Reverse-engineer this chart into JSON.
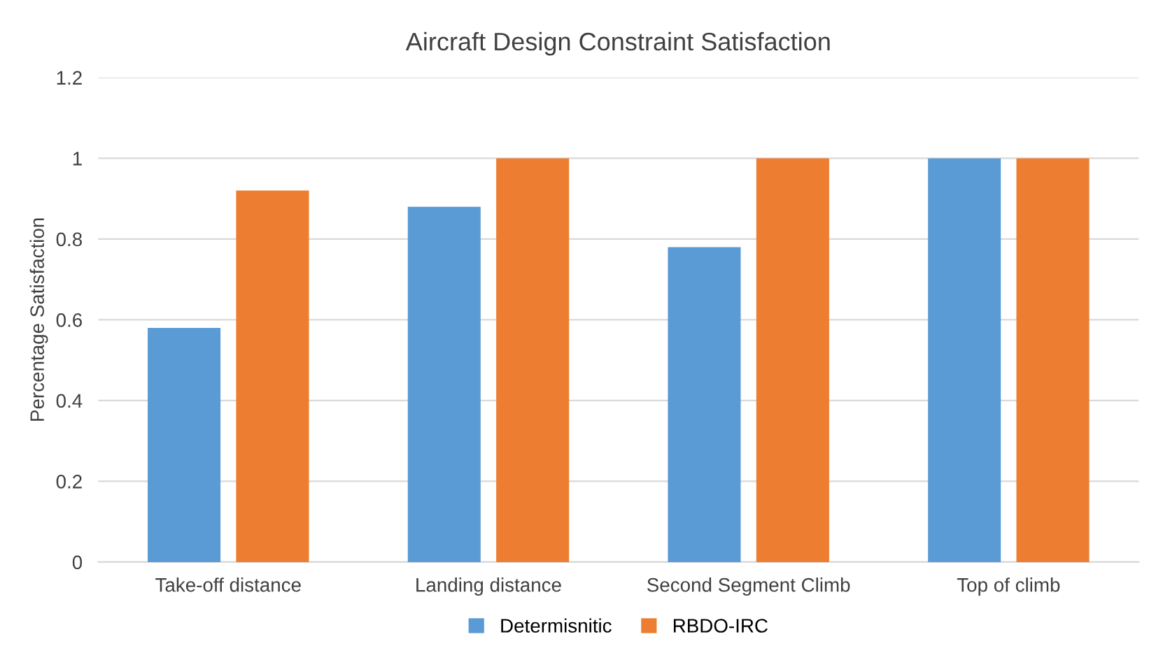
{
  "chart_data": {
    "type": "bar",
    "title": "Aircraft Design Constraint Satisfaction",
    "ylabel": "Percentage Satisfaction",
    "categories": [
      "Take-off distance",
      "Landing distance",
      "Second Segment Climb",
      "Top of climb"
    ],
    "series": [
      {
        "name": "Determisnitic",
        "color": "#5b9bd5",
        "values": [
          0.58,
          0.88,
          0.78,
          1.0
        ]
      },
      {
        "name": "RBDO-IRC",
        "color": "#ed7d31",
        "values": [
          0.92,
          1.0,
          1.0,
          1.0
        ]
      }
    ],
    "ylim": [
      0,
      1.2
    ],
    "yticks": [
      0,
      0.2,
      0.4,
      0.6,
      0.8,
      1,
      1.2
    ],
    "grid": "y",
    "legend": "bottom"
  }
}
